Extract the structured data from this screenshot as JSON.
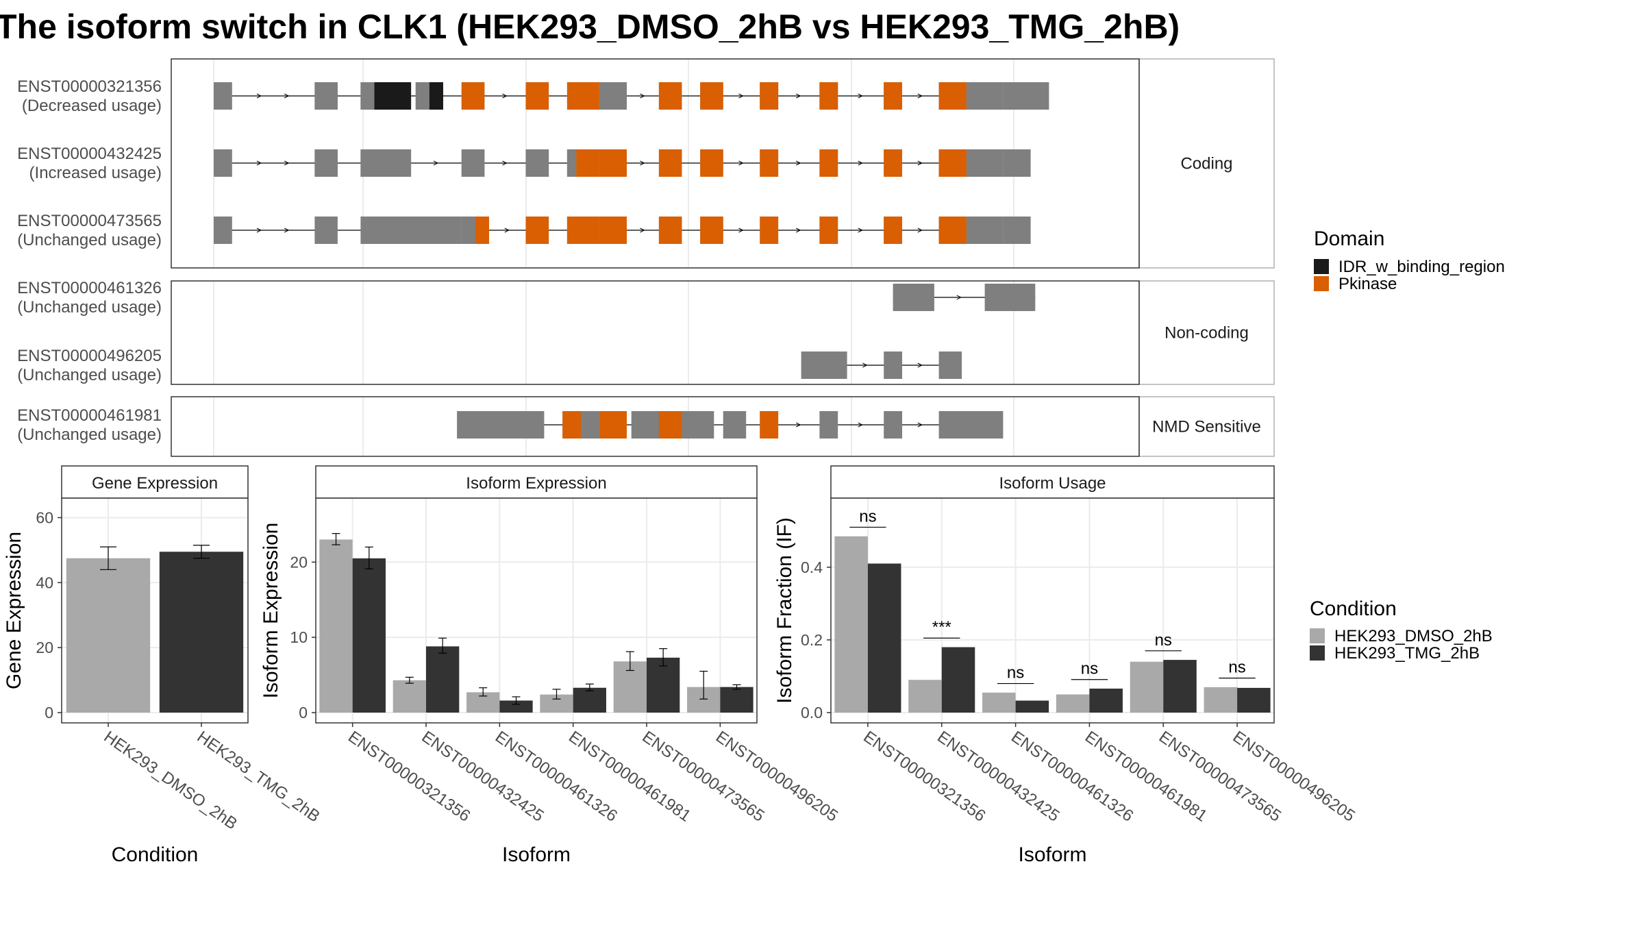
{
  "title": "The isoform switch in CLK1 (HEK293_DMSO_2hB vs HEK293_TMG_2hB)",
  "colors": {
    "utr": "#7f7f7f",
    "idr": "#1a1a1a",
    "pkinase": "#d95f02",
    "dmso": "#a9a9a9",
    "tmg": "#333333",
    "panel_border": "#333333",
    "strip_border": "#b0b0b0",
    "grid": "#ebebeb"
  },
  "transcript_plot": {
    "panels": [
      {
        "label": "Coding",
        "tracks": [
          {
            "id": "ENST00000321356",
            "usage": "(Decreased usage)",
            "exons": [
              [
                0,
                2
              ],
              [
                11,
                13.5
              ],
              [
                16,
                17.5
              ],
              [
                17.5,
                21.5
              ],
              [
                22,
                23.5
              ],
              [
                23.5,
                25
              ],
              [
                27,
                29.5
              ],
              [
                34,
                36.5
              ],
              [
                38.5,
                42
              ],
              [
                42,
                45
              ],
              [
                48.5,
                51
              ],
              [
                53,
                55.5
              ],
              [
                59.5,
                61.5
              ],
              [
                66,
                68
              ],
              [
                73,
                75
              ],
              [
                79,
                82
              ],
              [
                82,
                86
              ],
              [
                86,
                91
              ]
            ],
            "cds": [
              [
                11,
                13.5
              ],
              [
                16,
                17.5
              ],
              [
                22,
                23.5
              ],
              [
                59.5,
                61.5
              ],
              [
                66,
                68
              ],
              [
                73,
                75
              ],
              [
                79,
                81
              ]
            ],
            "idr": [
              [
                17.5,
                21.5
              ],
              [
                23.5,
                25
              ]
            ],
            "pk": [
              [
                27,
                29.5
              ],
              [
                34,
                36.5
              ],
              [
                38.5,
                42
              ],
              [
                48.5,
                51
              ],
              [
                53,
                55.5
              ],
              [
                59.5,
                61.5
              ],
              [
                66,
                68
              ],
              [
                73,
                75
              ],
              [
                79,
                82
              ]
            ]
          },
          {
            "id": "ENST00000432425",
            "usage": "(Increased usage)",
            "exons": [
              [
                0,
                2
              ],
              [
                11,
                13.5
              ],
              [
                16,
                21.5
              ],
              [
                27,
                29.5
              ],
              [
                34,
                36.5
              ],
              [
                38.5,
                39.5
              ],
              [
                39.5,
                42
              ],
              [
                42,
                45
              ],
              [
                48.5,
                51
              ],
              [
                53,
                55.5
              ],
              [
                59.5,
                61.5
              ],
              [
                66,
                68
              ],
              [
                73,
                75
              ],
              [
                79,
                82
              ],
              [
                82,
                86
              ],
              [
                86,
                89
              ]
            ],
            "cds": [
              [
                11,
                13.5
              ],
              [
                16,
                21.5
              ],
              [
                27,
                29.5
              ],
              [
                34,
                36.5
              ],
              [
                38.5,
                39.5
              ]
            ],
            "idr": [],
            "pk": [
              [
                39.5,
                42
              ],
              [
                42,
                45
              ],
              [
                48.5,
                51
              ],
              [
                53,
                55.5
              ],
              [
                59.5,
                61.5
              ],
              [
                66,
                68
              ],
              [
                73,
                75
              ],
              [
                79,
                82
              ]
            ]
          },
          {
            "id": "ENST00000473565",
            "usage": "(Unchanged usage)",
            "exons": [
              [
                0,
                2
              ],
              [
                11,
                13.5
              ],
              [
                16,
                27
              ],
              [
                27,
                30
              ],
              [
                34,
                36.5
              ],
              [
                38.5,
                42
              ],
              [
                42,
                45
              ],
              [
                48.5,
                51
              ],
              [
                53,
                55.5
              ],
              [
                59.5,
                61.5
              ],
              [
                66,
                68
              ],
              [
                73,
                75
              ],
              [
                79,
                82
              ],
              [
                82,
                86
              ],
              [
                86,
                89
              ]
            ],
            "cds": [
              [
                27,
                28.5
              ]
            ],
            "idr": [],
            "pk": [
              [
                28.5,
                30
              ],
              [
                34,
                36.5
              ],
              [
                38.5,
                42
              ],
              [
                42,
                45
              ],
              [
                48.5,
                51
              ],
              [
                53,
                55.5
              ],
              [
                59.5,
                61.5
              ],
              [
                66,
                68
              ],
              [
                73,
                75
              ],
              [
                79,
                82
              ]
            ]
          }
        ]
      },
      {
        "label": "Non-coding",
        "tracks": [
          {
            "id": "ENST00000461326",
            "usage": "(Unchanged usage)",
            "exons": [
              [
                74,
                78.5
              ],
              [
                84,
                89.5
              ]
            ],
            "cds": [],
            "idr": [],
            "pk": []
          },
          {
            "id": "ENST00000496205",
            "usage": "(Unchanged usage)",
            "exons": [
              [
                64,
                69
              ],
              [
                73,
                75
              ],
              [
                79,
                81.5
              ]
            ],
            "cds": [],
            "idr": [],
            "pk": []
          }
        ]
      },
      {
        "label": "NMD Sensitive",
        "tracks": [
          {
            "id": "ENST00000461981",
            "usage": "(Unchanged usage)",
            "exons": [
              [
                26.5,
                36
              ],
              [
                38,
                42
              ],
              [
                42,
                45
              ],
              [
                45.5,
                54.5
              ],
              [
                55.5,
                58
              ],
              [
                59.5,
                61.5
              ],
              [
                66,
                68
              ],
              [
                73,
                75
              ],
              [
                79,
                86
              ]
            ],
            "cds": [],
            "idr": [],
            "pk": [
              [
                38,
                40
              ],
              [
                42,
                45
              ],
              [
                48.5,
                51
              ],
              [
                59.5,
                61.5
              ]
            ]
          }
        ]
      }
    ],
    "legend": {
      "title": "Domain",
      "items": [
        {
          "label": "IDR_w_binding_region",
          "color_key": "idr"
        },
        {
          "label": "Pkinase",
          "color_key": "pkinase"
        }
      ]
    }
  },
  "chart_data": [
    {
      "type": "bar",
      "title": "Gene Expression",
      "xlabel": "Condition",
      "ylabel": "Gene Expression",
      "ylim": [
        0,
        66
      ],
      "yticks": [
        0,
        20,
        40,
        60
      ],
      "categories": [
        "HEK293_DMSO_2hB",
        "HEK293_TMG_2hB"
      ],
      "values": [
        47.5,
        49.5
      ],
      "errors": [
        [
          44.0,
          51.0
        ],
        [
          47.5,
          51.5
        ]
      ]
    },
    {
      "type": "bar",
      "title": "Isoform Expression",
      "xlabel": "Isoform",
      "ylabel": "Isoform Expression",
      "ylim": [
        0,
        28.5
      ],
      "yticks": [
        0,
        10,
        20
      ],
      "categories": [
        "ENST00000321356",
        "ENST00000432425",
        "ENST00000461326",
        "ENST00000461981",
        "ENST00000473565",
        "ENST00000496205"
      ],
      "series": [
        {
          "name": "HEK293_DMSO_2hB",
          "values": [
            23.0,
            4.3,
            2.7,
            2.4,
            6.8,
            3.4
          ],
          "errors": [
            [
              22.3,
              23.8
            ],
            [
              3.9,
              4.7
            ],
            [
              2.2,
              3.3
            ],
            [
              1.8,
              3.1
            ],
            [
              5.6,
              8.1
            ],
            [
              1.8,
              5.5
            ]
          ]
        },
        {
          "name": "HEK293_TMG_2hB",
          "values": [
            20.5,
            8.8,
            1.6,
            3.3,
            7.3,
            3.4
          ],
          "errors": [
            [
              19.1,
              22.0
            ],
            [
              7.9,
              9.9
            ],
            [
              1.1,
              2.1
            ],
            [
              2.9,
              3.8
            ],
            [
              6.2,
              8.5
            ],
            [
              3.1,
              3.7
            ]
          ]
        }
      ]
    },
    {
      "type": "bar",
      "title": "Isoform Usage",
      "xlabel": "Isoform",
      "ylabel": "Isoform Fraction (IF)",
      "ylim": [
        0,
        0.59
      ],
      "yticks": [
        0.0,
        0.2,
        0.4
      ],
      "categories": [
        "ENST00000321356",
        "ENST00000432425",
        "ENST00000461326",
        "ENST00000461981",
        "ENST00000473565",
        "ENST00000496205"
      ],
      "series": [
        {
          "name": "HEK293_DMSO_2hB",
          "values": [
            0.485,
            0.09,
            0.055,
            0.05,
            0.14,
            0.07
          ]
        },
        {
          "name": "HEK293_TMG_2hB",
          "values": [
            0.41,
            0.18,
            0.033,
            0.066,
            0.145,
            0.068
          ]
        }
      ],
      "significance": [
        "ns",
        "***",
        "ns",
        "ns",
        "ns",
        "ns"
      ]
    }
  ],
  "condition_legend": {
    "title": "Condition",
    "items": [
      {
        "label": "HEK293_DMSO_2hB",
        "color_key": "dmso"
      },
      {
        "label": "HEK293_TMG_2hB",
        "color_key": "tmg"
      }
    ]
  }
}
